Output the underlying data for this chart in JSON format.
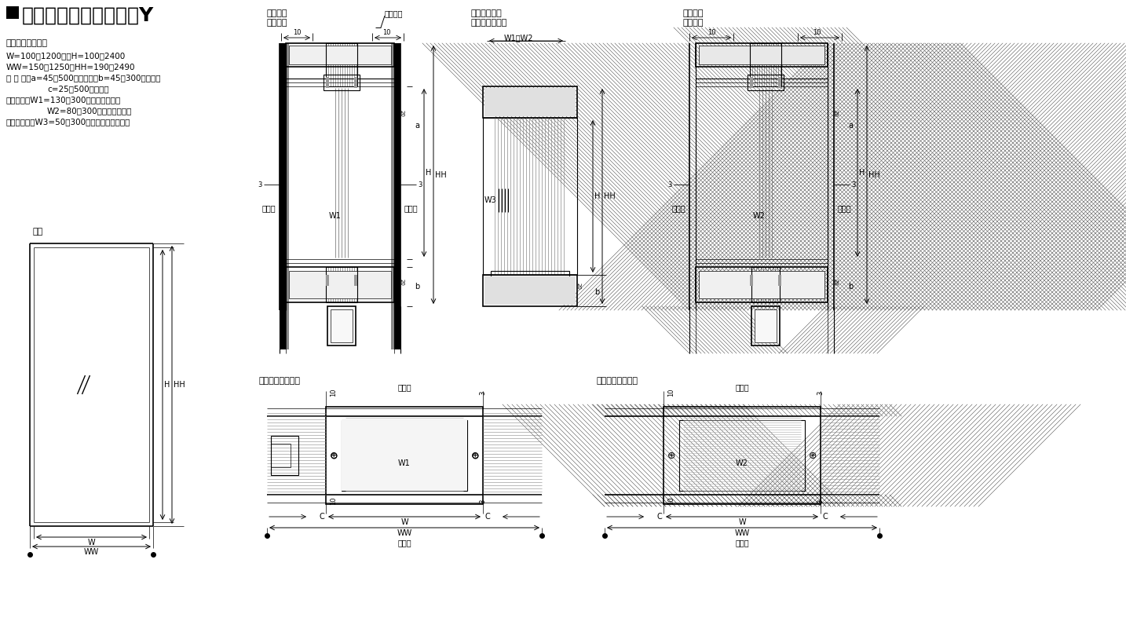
{
  "title_text": "エリファイトプラス－Y",
  "bg_color": "#ffffff",
  "lc": "#000000",
  "spec_lines": [
    "【製作許容範囲】",
    "W=100～1200　　H=100～2400",
    "WW=150～1250　HH=190～2490",
    "枠 見 付：a=45～500（上枠）　b=45～300（下枫）",
    "　　　　　c=25～500（縦枠）",
    "枠見込み：W1=130～300（乾式の場合）",
    "　　　　　W2=80～300（湿式の場合）",
    "巾木見込み：W3=50～300（乾式・湿式共通）"
  ]
}
